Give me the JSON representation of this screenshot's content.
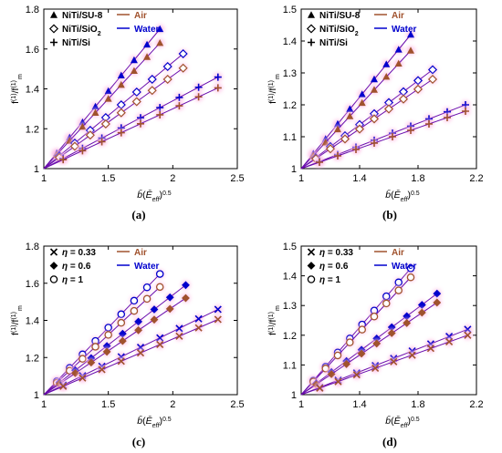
{
  "colors": {
    "air": "#a0522d",
    "water": "#0000cd",
    "fit_line": "#6a0dad",
    "glow": "#ffc0e6",
    "axis": "#000000"
  },
  "chart_data": [
    {
      "panel": "(a)",
      "type": "scatter",
      "ylabel": "f(1)/f(1)m",
      "xlabel": "b̄(Ē_eff)^0.5",
      "xlim": [
        1,
        2.5
      ],
      "ylim": [
        1,
        1.8
      ],
      "xticks": [
        "1",
        "1.5",
        "2",
        "2.5"
      ],
      "yticks": [
        "1",
        "1.2",
        "1.4",
        "1.6",
        "1.8"
      ],
      "legend_groups": [
        {
          "label": "NiTi/SU-8",
          "marker": "triangle"
        },
        {
          "label": "NiTi/SiO",
          "sub": "2",
          "marker": "diamond"
        },
        {
          "label": "NiTi/Si",
          "marker": "plus"
        }
      ],
      "legend_media": [
        "Air",
        "Water"
      ],
      "series": [
        {
          "group": 0,
          "medium": "water",
          "x": [
            1,
            1.1,
            1.2,
            1.3,
            1.4,
            1.5,
            1.6,
            1.7,
            1.8,
            1.9
          ],
          "y": [
            1,
            1.078,
            1.156,
            1.233,
            1.311,
            1.389,
            1.467,
            1.544,
            1.622,
            1.7
          ]
        },
        {
          "group": 0,
          "medium": "air",
          "x": [
            1,
            1.1,
            1.2,
            1.3,
            1.4,
            1.5,
            1.6,
            1.7,
            1.8,
            1.9
          ],
          "y": [
            1,
            1.07,
            1.14,
            1.21,
            1.28,
            1.35,
            1.42,
            1.49,
            1.56,
            1.63
          ]
        },
        {
          "group": 1,
          "medium": "water",
          "x": [
            1,
            1.12,
            1.24,
            1.36,
            1.48,
            1.6,
            1.72,
            1.84,
            1.96,
            2.08
          ],
          "y": [
            1,
            1.064,
            1.128,
            1.192,
            1.256,
            1.32,
            1.384,
            1.448,
            1.512,
            1.576
          ]
        },
        {
          "group": 1,
          "medium": "air",
          "x": [
            1,
            1.12,
            1.24,
            1.36,
            1.48,
            1.6,
            1.72,
            1.84,
            1.96,
            2.08
          ],
          "y": [
            1,
            1.056,
            1.112,
            1.168,
            1.224,
            1.28,
            1.336,
            1.392,
            1.448,
            1.504
          ]
        },
        {
          "group": 2,
          "medium": "water",
          "x": [
            1,
            1.15,
            1.3,
            1.45,
            1.6,
            1.75,
            1.9,
            2.05,
            2.2,
            2.35
          ],
          "y": [
            1,
            1.051,
            1.102,
            1.153,
            1.204,
            1.255,
            1.306,
            1.357,
            1.408,
            1.459
          ]
        },
        {
          "group": 2,
          "medium": "air",
          "x": [
            1,
            1.15,
            1.3,
            1.45,
            1.6,
            1.75,
            1.9,
            2.05,
            2.2,
            2.35
          ],
          "y": [
            1,
            1.045,
            1.09,
            1.135,
            1.18,
            1.225,
            1.27,
            1.315,
            1.36,
            1.405
          ]
        }
      ]
    },
    {
      "panel": "(b)",
      "type": "scatter",
      "ylabel": "f(1)/f(1)m",
      "xlabel": "b̄(Ē_eff)^0.5",
      "xlim": [
        1,
        2.2
      ],
      "ylim": [
        1,
        1.5
      ],
      "xticks": [
        "1",
        "1.4",
        "1.8",
        "2.2"
      ],
      "yticks": [
        "1",
        "1.1",
        "1.2",
        "1.3",
        "1.4",
        "1.5"
      ],
      "legend_groups": [
        {
          "label": "NiTi/SU-8",
          "marker": "triangle"
        },
        {
          "label": "NiTi/SiO",
          "sub": "2",
          "marker": "diamond"
        },
        {
          "label": "NiTi/Si",
          "marker": "plus"
        }
      ],
      "legend_media": [
        "Air",
        "Water"
      ],
      "series": [
        {
          "group": 0,
          "medium": "water",
          "x": [
            1,
            1.083,
            1.167,
            1.25,
            1.333,
            1.417,
            1.5,
            1.583,
            1.667,
            1.75
          ],
          "y": [
            1,
            1.047,
            1.093,
            1.14,
            1.187,
            1.233,
            1.28,
            1.327,
            1.373,
            1.42
          ]
        },
        {
          "group": 0,
          "medium": "air",
          "x": [
            1,
            1.083,
            1.167,
            1.25,
            1.333,
            1.417,
            1.5,
            1.583,
            1.667,
            1.75
          ],
          "y": [
            1,
            1.041,
            1.082,
            1.123,
            1.164,
            1.206,
            1.247,
            1.288,
            1.329,
            1.37
          ]
        },
        {
          "group": 1,
          "medium": "water",
          "x": [
            1,
            1.1,
            1.2,
            1.3,
            1.4,
            1.5,
            1.6,
            1.7,
            1.8,
            1.9
          ],
          "y": [
            1,
            1.034,
            1.069,
            1.103,
            1.138,
            1.172,
            1.207,
            1.241,
            1.276,
            1.31
          ]
        },
        {
          "group": 1,
          "medium": "air",
          "x": [
            1,
            1.1,
            1.2,
            1.3,
            1.4,
            1.5,
            1.6,
            1.7,
            1.8,
            1.9
          ],
          "y": [
            1,
            1.031,
            1.062,
            1.093,
            1.124,
            1.156,
            1.187,
            1.218,
            1.249,
            1.28
          ]
        },
        {
          "group": 2,
          "medium": "water",
          "x": [
            1,
            1.125,
            1.25,
            1.375,
            1.5,
            1.625,
            1.75,
            1.875,
            2,
            2.125
          ],
          "y": [
            1,
            1.022,
            1.044,
            1.067,
            1.089,
            1.111,
            1.133,
            1.156,
            1.178,
            1.2
          ]
        },
        {
          "group": 2,
          "medium": "air",
          "x": [
            1,
            1.125,
            1.25,
            1.375,
            1.5,
            1.625,
            1.75,
            1.875,
            2,
            2.125
          ],
          "y": [
            1,
            1.02,
            1.04,
            1.06,
            1.08,
            1.1,
            1.12,
            1.14,
            1.16,
            1.18
          ]
        }
      ]
    },
    {
      "panel": "(c)",
      "type": "scatter",
      "ylabel": "f(1)/f(1)m",
      "xlabel": "b̄(Ē_eff)^0.5",
      "xlim": [
        1,
        2.5
      ],
      "ylim": [
        1,
        1.8
      ],
      "xticks": [
        "1",
        "1.5",
        "2",
        "2.5"
      ],
      "yticks": [
        "1",
        "1.2",
        "1.4",
        "1.6",
        "1.8"
      ],
      "legend_groups": [
        {
          "label": "η = 0.33",
          "marker": "cross"
        },
        {
          "label": "η = 0.6",
          "marker": "diamond-filled"
        },
        {
          "label": "η = 1",
          "marker": "circle"
        }
      ],
      "legend_media": [
        "Air",
        "Water"
      ],
      "series": [
        {
          "group": 2,
          "medium": "water",
          "x": [
            1,
            1.1,
            1.2,
            1.3,
            1.4,
            1.5,
            1.6,
            1.7,
            1.8,
            1.9
          ],
          "y": [
            1,
            1.072,
            1.144,
            1.217,
            1.289,
            1.361,
            1.433,
            1.506,
            1.578,
            1.65
          ]
        },
        {
          "group": 2,
          "medium": "air",
          "x": [
            1,
            1.1,
            1.2,
            1.3,
            1.4,
            1.5,
            1.6,
            1.7,
            1.8,
            1.9
          ],
          "y": [
            1,
            1.064,
            1.129,
            1.193,
            1.258,
            1.322,
            1.387,
            1.451,
            1.516,
            1.58
          ]
        },
        {
          "group": 1,
          "medium": "water",
          "x": [
            1,
            1.122,
            1.244,
            1.367,
            1.489,
            1.611,
            1.733,
            1.856,
            1.978,
            2.1
          ],
          "y": [
            1,
            1.066,
            1.131,
            1.197,
            1.262,
            1.328,
            1.393,
            1.459,
            1.524,
            1.59
          ]
        },
        {
          "group": 1,
          "medium": "air",
          "x": [
            1,
            1.122,
            1.244,
            1.367,
            1.489,
            1.611,
            1.733,
            1.856,
            1.978,
            2.1
          ],
          "y": [
            1,
            1.058,
            1.116,
            1.173,
            1.231,
            1.289,
            1.347,
            1.404,
            1.462,
            1.52
          ]
        },
        {
          "group": 0,
          "medium": "water",
          "x": [
            1,
            1.15,
            1.3,
            1.45,
            1.6,
            1.75,
            1.9,
            2.05,
            2.2,
            2.35
          ],
          "y": [
            1,
            1.051,
            1.102,
            1.153,
            1.204,
            1.255,
            1.306,
            1.357,
            1.408,
            1.459
          ]
        },
        {
          "group": 0,
          "medium": "air",
          "x": [
            1,
            1.15,
            1.3,
            1.45,
            1.6,
            1.75,
            1.9,
            2.05,
            2.2,
            2.35
          ],
          "y": [
            1,
            1.045,
            1.09,
            1.135,
            1.18,
            1.225,
            1.27,
            1.315,
            1.36,
            1.405
          ]
        }
      ]
    },
    {
      "panel": "(d)",
      "type": "scatter",
      "ylabel": "f(1)/f(1)m",
      "xlabel": "b̄(Ē_eff)^0.5",
      "xlim": [
        1,
        2.2
      ],
      "ylim": [
        1,
        1.5
      ],
      "xticks": [
        "1",
        "1.4",
        "1.8",
        "2.2"
      ],
      "yticks": [
        "1",
        "1.1",
        "1.2",
        "1.3",
        "1.4",
        "1.5"
      ],
      "legend_groups": [
        {
          "label": "η = 0.33",
          "marker": "cross"
        },
        {
          "label": "η = 0.6",
          "marker": "diamond-filled"
        },
        {
          "label": "η = 1",
          "marker": "circle"
        }
      ],
      "legend_media": [
        "Air",
        "Water"
      ],
      "series": [
        {
          "group": 2,
          "medium": "water",
          "x": [
            1,
            1.083,
            1.167,
            1.25,
            1.333,
            1.417,
            1.5,
            1.583,
            1.667,
            1.75
          ],
          "y": [
            1,
            1.047,
            1.094,
            1.142,
            1.189,
            1.236,
            1.283,
            1.331,
            1.378,
            1.425
          ]
        },
        {
          "group": 2,
          "medium": "air",
          "x": [
            1,
            1.083,
            1.167,
            1.25,
            1.333,
            1.417,
            1.5,
            1.583,
            1.667,
            1.75
          ],
          "y": [
            1,
            1.044,
            1.088,
            1.132,
            1.176,
            1.219,
            1.263,
            1.307,
            1.351,
            1.395
          ]
        },
        {
          "group": 1,
          "medium": "water",
          "x": [
            1,
            1.103,
            1.207,
            1.31,
            1.413,
            1.517,
            1.62,
            1.723,
            1.827,
            1.93
          ],
          "y": [
            1,
            1.038,
            1.076,
            1.113,
            1.151,
            1.189,
            1.227,
            1.264,
            1.302,
            1.34
          ]
        },
        {
          "group": 1,
          "medium": "air",
          "x": [
            1,
            1.103,
            1.207,
            1.31,
            1.413,
            1.517,
            1.62,
            1.723,
            1.827,
            1.93
          ],
          "y": [
            1,
            1.034,
            1.069,
            1.103,
            1.138,
            1.172,
            1.207,
            1.241,
            1.276,
            1.31
          ]
        },
        {
          "group": 0,
          "medium": "water",
          "x": [
            1,
            1.127,
            1.253,
            1.38,
            1.507,
            1.633,
            1.76,
            1.887,
            2.013,
            2.14
          ],
          "y": [
            1,
            1.024,
            1.049,
            1.073,
            1.098,
            1.122,
            1.147,
            1.171,
            1.196,
            1.22
          ]
        },
        {
          "group": 0,
          "medium": "air",
          "x": [
            1,
            1.127,
            1.253,
            1.38,
            1.507,
            1.633,
            1.76,
            1.887,
            2.013,
            2.14
          ],
          "y": [
            1,
            1.022,
            1.044,
            1.067,
            1.089,
            1.111,
            1.133,
            1.156,
            1.178,
            1.2
          ]
        }
      ]
    }
  ]
}
